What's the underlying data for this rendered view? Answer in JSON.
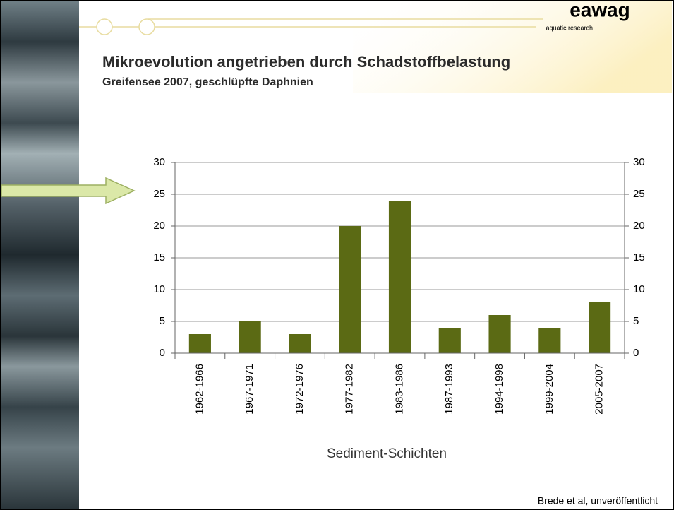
{
  "logo": {
    "name": "eawag",
    "tagline": "aquatic research"
  },
  "source": "Brede et al, unveröffentlicht",
  "chart_data": {
    "type": "bar",
    "title": "Mikroevolution angetrieben durch Schadstoffbelastung",
    "subtitle": "Greifensee 2007, geschlüpfte Daphnien",
    "x_label": "Sediment-Schichten",
    "categories": [
      "1962-1966",
      "1967-1971",
      "1972-1976",
      "1977-1982",
      "1983-1986",
      "1987-1993",
      "1994-1998",
      "1999-2004",
      "2005-2007"
    ],
    "values": [
      3,
      5,
      3,
      20,
      24,
      4,
      6,
      4,
      8
    ],
    "color": "#5b6a14",
    "ylim": [
      0,
      30
    ],
    "yticks": [
      0,
      5,
      10,
      15,
      20,
      25,
      30
    ],
    "y2lim": [
      0,
      30
    ],
    "y2ticks": [
      0,
      5,
      10,
      15,
      20,
      25,
      30
    ],
    "grid": true
  }
}
